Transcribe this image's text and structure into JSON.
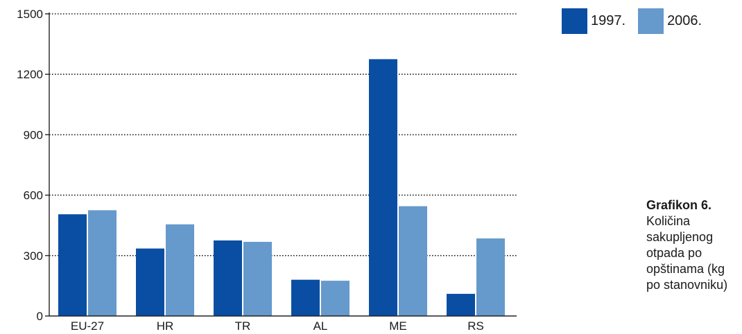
{
  "chart_data": {
    "type": "bar",
    "categories": [
      "EU-27",
      "HR",
      "TR",
      "AL",
      "ME",
      "RS"
    ],
    "series": [
      {
        "name": "1997.",
        "color": "#0a4ea3",
        "values": [
          505,
          335,
          375,
          180,
          1275,
          110
        ]
      },
      {
        "name": "2006.",
        "color": "#6699cc",
        "values": [
          525,
          455,
          368,
          175,
          545,
          385
        ]
      }
    ],
    "ylim": [
      0,
      1500
    ],
    "yticks": [
      0,
      300,
      600,
      900,
      1200,
      1500
    ],
    "grid": "dotted horizontal",
    "legend": "top-right"
  },
  "caption": {
    "title": "Grafikon 6.",
    "text": "Količina sakupljenog otpada po opštinama (kg po stanovniku)"
  }
}
